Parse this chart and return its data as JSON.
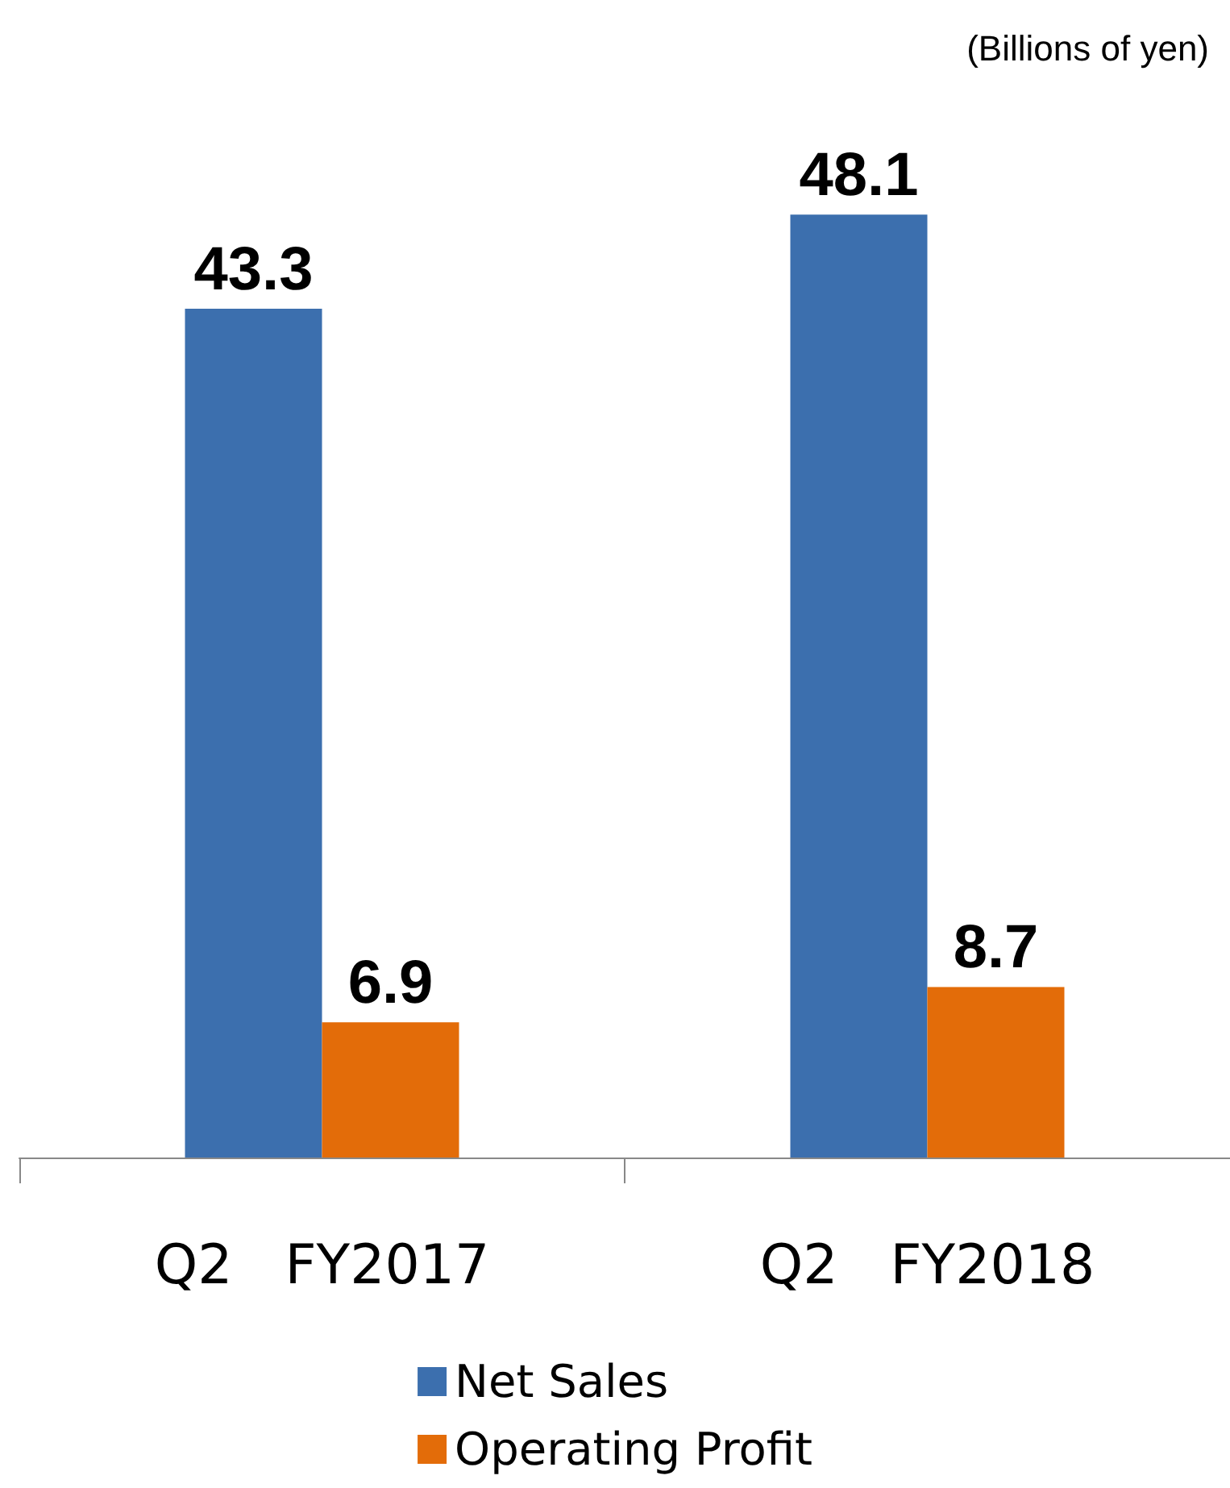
{
  "chart_data": {
    "type": "bar",
    "subtitle": "(Billions of yen)",
    "categories": [
      "Q2   FY2017",
      "Q2   FY2018"
    ],
    "series": [
      {
        "name": "Net Sales",
        "color": "#3c6fae",
        "values": [
          43.3,
          48.1
        ]
      },
      {
        "name": "Operating Profit",
        "color": "#e36c09",
        "values": [
          6.9,
          8.7
        ]
      }
    ],
    "data_labels": true,
    "legend": "bottom"
  }
}
